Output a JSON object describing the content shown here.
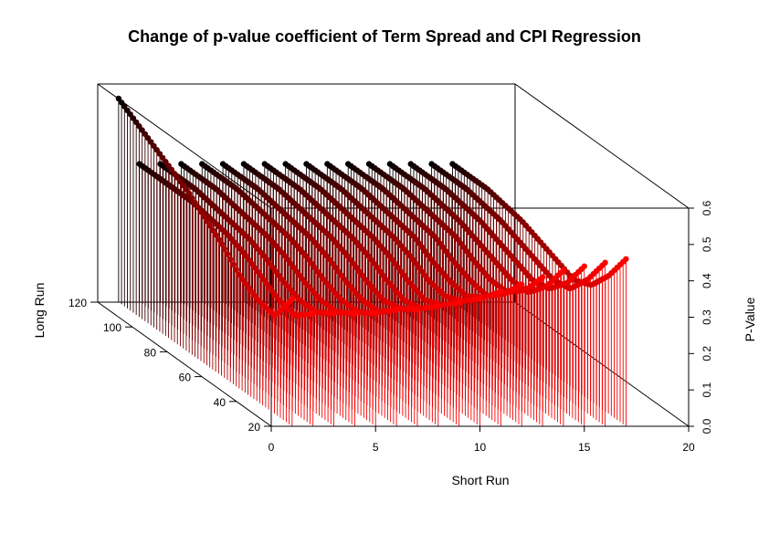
{
  "chart_data": {
    "type": "scatter3d",
    "title": "Change of p-value coefficient of Term Spread and CPI Regression",
    "xlabel": "Short Run",
    "ylabel": "Long Run",
    "zlabel": "P-Value",
    "xlim": [
      0,
      20
    ],
    "ylim": [
      20,
      120
    ],
    "zlim": [
      0,
      0.6
    ],
    "x_ticks": [
      "0",
      "5",
      "10",
      "15",
      "20"
    ],
    "y_ticks": [
      "20",
      "40",
      "60",
      "80",
      "100",
      "120"
    ],
    "z_ticks": [
      "0.0",
      "0.1",
      "0.2",
      "0.3",
      "0.4",
      "0.5",
      "0.6"
    ],
    "series": [
      {
        "short_run": 1,
        "long_run": [
          20,
          120
        ],
        "p_value": [
          0.35,
          0.27,
          0.28,
          0.31,
          0.36,
          0.4,
          0.44,
          0.47,
          0.5,
          0.53,
          0.56
        ]
      },
      {
        "short_run": 2,
        "long_run": [
          20,
          120
        ],
        "p_value": [
          0.31,
          0.27,
          0.28,
          0.31,
          0.34,
          0.36,
          0.37,
          0.38,
          0.38,
          0.38,
          0.38
        ]
      },
      {
        "short_run": 3,
        "long_run": [
          20,
          120
        ],
        "p_value": [
          0.31,
          0.28,
          0.28,
          0.3,
          0.33,
          0.35,
          0.36,
          0.37,
          0.38,
          0.38,
          0.38
        ]
      },
      {
        "short_run": 4,
        "long_run": [
          20,
          120
        ],
        "p_value": [
          0.31,
          0.28,
          0.28,
          0.3,
          0.33,
          0.35,
          0.36,
          0.37,
          0.38,
          0.38,
          0.38
        ]
      },
      {
        "short_run": 5,
        "long_run": [
          20,
          120
        ],
        "p_value": [
          0.31,
          0.28,
          0.28,
          0.3,
          0.33,
          0.35,
          0.36,
          0.37,
          0.38,
          0.38,
          0.38
        ]
      },
      {
        "short_run": 6,
        "long_run": [
          20,
          120
        ],
        "p_value": [
          0.32,
          0.28,
          0.28,
          0.3,
          0.33,
          0.35,
          0.36,
          0.37,
          0.38,
          0.38,
          0.38
        ]
      },
      {
        "short_run": 7,
        "long_run": [
          20,
          120
        ],
        "p_value": [
          0.32,
          0.29,
          0.28,
          0.3,
          0.33,
          0.35,
          0.36,
          0.37,
          0.38,
          0.38,
          0.38
        ]
      },
      {
        "short_run": 8,
        "long_run": [
          20,
          120
        ],
        "p_value": [
          0.33,
          0.29,
          0.28,
          0.3,
          0.33,
          0.35,
          0.36,
          0.37,
          0.38,
          0.38,
          0.38
        ]
      },
      {
        "short_run": 9,
        "long_run": [
          20,
          120
        ],
        "p_value": [
          0.34,
          0.3,
          0.28,
          0.3,
          0.33,
          0.35,
          0.36,
          0.37,
          0.38,
          0.38,
          0.38
        ]
      },
      {
        "short_run": 10,
        "long_run": [
          20,
          120
        ],
        "p_value": [
          0.35,
          0.31,
          0.29,
          0.3,
          0.33,
          0.35,
          0.36,
          0.37,
          0.38,
          0.38,
          0.38
        ]
      },
      {
        "short_run": 11,
        "long_run": [
          20,
          120
        ],
        "p_value": [
          0.37,
          0.32,
          0.29,
          0.3,
          0.32,
          0.35,
          0.36,
          0.37,
          0.38,
          0.38,
          0.38
        ]
      },
      {
        "short_run": 12,
        "long_run": [
          20,
          120
        ],
        "p_value": [
          0.39,
          0.33,
          0.29,
          0.3,
          0.32,
          0.35,
          0.36,
          0.37,
          0.38,
          0.38,
          0.38
        ]
      },
      {
        "short_run": 13,
        "long_run": [
          20,
          120
        ],
        "p_value": [
          0.41,
          0.34,
          0.3,
          0.3,
          0.32,
          0.35,
          0.36,
          0.37,
          0.38,
          0.38,
          0.38
        ]
      },
      {
        "short_run": 14,
        "long_run": [
          20,
          120
        ],
        "p_value": [
          0.43,
          0.35,
          0.3,
          0.3,
          0.32,
          0.34,
          0.36,
          0.37,
          0.38,
          0.38,
          0.38
        ]
      },
      {
        "short_run": 15,
        "long_run": [
          20,
          120
        ],
        "p_value": [
          0.44,
          0.36,
          0.31,
          0.3,
          0.32,
          0.34,
          0.36,
          0.37,
          0.38,
          0.38,
          0.38
        ]
      },
      {
        "short_run": 16,
        "long_run": [
          20,
          120
        ],
        "p_value": [
          0.45,
          0.37,
          0.31,
          0.3,
          0.32,
          0.34,
          0.36,
          0.37,
          0.38,
          0.38,
          0.38
        ]
      },
      {
        "short_run": 17,
        "long_run": [
          20,
          120
        ],
        "p_value": [
          0.46,
          0.38,
          0.32,
          0.3,
          0.32,
          0.34,
          0.36,
          0.37,
          0.38,
          0.38,
          0.38
        ]
      }
    ],
    "grid": false,
    "colors": {
      "near": "#ff0000",
      "far": "#000000"
    }
  }
}
